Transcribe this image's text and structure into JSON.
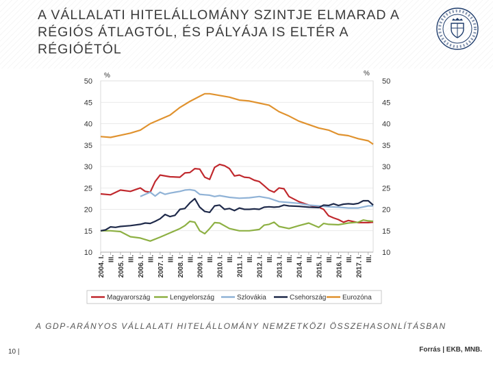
{
  "header": {
    "title_line1": "A VÁLLALATI HITELÁLLOMÁNY SZINTJE ELMARAD A",
    "title_line2": "RÉGIÓS ÁTLAGTÓL, ÉS PÁLYÁJA IS ELTÉR A",
    "title_line3": "RÉGIÓÉTÓL",
    "logo_icon": "mnb-seal-icon"
  },
  "footer": {
    "subtitle": "A GDP-ARÁNYOS VÁLLALATI HITELÁLLOMÁNY NEMZETKÖZI ÖSSZEHASONLÍTÁSBAN",
    "page_number": "10 |",
    "source": "Forrás | EKB, MNB."
  },
  "chart_data": {
    "type": "line",
    "title": "A GDP-ARÁNYOS VÁLLALATI HITELÁLLOMÁNY NEMZETKÖZI ÖSSZEHASONLÍTÁSBAN",
    "ylabel_left": "%",
    "ylabel_right": "%",
    "ylim": [
      10,
      50
    ],
    "yticks": [
      10,
      15,
      20,
      25,
      30,
      35,
      40,
      45,
      50
    ],
    "x_range": [
      2004.0,
      2017.75
    ],
    "x_tick_labels": [
      "2004. I.",
      "III.",
      "2005. I.",
      "III.",
      "2006. I.",
      "III.",
      "2007. I.",
      "III.",
      "2008. I.",
      "III.",
      "2009. I.",
      "III.",
      "2010. I.",
      "III.",
      "2011. I.",
      "III.",
      "2012. I.",
      "III.",
      "2013. I.",
      "III.",
      "2014. I.",
      "III.",
      "2015. I.",
      "III.",
      "2016. I.",
      "III.",
      "2017. I.",
      "III."
    ],
    "legend_position": "bottom",
    "series": [
      {
        "name": "Magyarország",
        "color": "#c0282d",
        "x": [
          2004.0,
          2004.5,
          2005.0,
          2005.5,
          2006.0,
          2006.25,
          2006.5,
          2006.75,
          2007.0,
          2007.5,
          2008.0,
          2008.25,
          2008.5,
          2008.75,
          2009.0,
          2009.25,
          2009.5,
          2009.75,
          2010.0,
          2010.25,
          2010.5,
          2010.75,
          2011.0,
          2011.25,
          2011.5,
          2011.75,
          2012.0,
          2012.25,
          2012.5,
          2012.75,
          2013.0,
          2013.25,
          2013.5,
          2014.0,
          2014.5,
          2015.0,
          2015.25,
          2015.5,
          2015.75,
          2016.0,
          2016.25,
          2016.5,
          2017.0,
          2017.5,
          2017.75
        ],
        "y": [
          23.6,
          23.4,
          24.5,
          24.2,
          25.0,
          24.2,
          24.0,
          26.5,
          28.0,
          27.6,
          27.5,
          28.5,
          28.6,
          29.5,
          29.4,
          27.5,
          27.0,
          29.8,
          30.5,
          30.2,
          29.5,
          27.8,
          28.0,
          27.5,
          27.4,
          26.8,
          26.5,
          25.5,
          24.5,
          24.0,
          25.0,
          24.8,
          23.0,
          21.8,
          21.0,
          20.5,
          20.0,
          18.5,
          18.0,
          17.6,
          17.0,
          17.4,
          16.9,
          16.9,
          17.0
        ]
      },
      {
        "name": "Lengyelország",
        "color": "#8db043",
        "x": [
          2004.0,
          2004.5,
          2005.0,
          2005.5,
          2006.0,
          2006.5,
          2007.0,
          2007.5,
          2008.0,
          2008.25,
          2008.5,
          2008.75,
          2009.0,
          2009.25,
          2009.5,
          2009.75,
          2010.0,
          2010.5,
          2011.0,
          2011.5,
          2012.0,
          2012.25,
          2012.5,
          2012.75,
          2013.0,
          2013.5,
          2014.0,
          2014.5,
          2015.0,
          2015.25,
          2015.5,
          2016.0,
          2016.5,
          2017.0,
          2017.25,
          2017.5,
          2017.75
        ],
        "y": [
          15.0,
          15.0,
          14.8,
          13.6,
          13.3,
          12.6,
          13.5,
          14.5,
          15.5,
          16.2,
          17.2,
          17.0,
          15.0,
          14.3,
          15.5,
          16.9,
          16.8,
          15.5,
          15.0,
          15.0,
          15.3,
          16.3,
          16.5,
          17.0,
          16.0,
          15.5,
          16.2,
          16.8,
          15.8,
          16.7,
          16.5,
          16.4,
          16.8,
          17.0,
          17.5,
          17.3,
          17.2
        ]
      },
      {
        "name": "Szlovákia",
        "color": "#8fb2d6",
        "x": [
          2006.0,
          2006.25,
          2006.5,
          2006.75,
          2007.0,
          2007.25,
          2007.5,
          2007.75,
          2008.0,
          2008.25,
          2008.5,
          2008.75,
          2009.0,
          2009.25,
          2009.5,
          2009.75,
          2010.0,
          2010.5,
          2011.0,
          2011.5,
          2012.0,
          2012.5,
          2013.0,
          2013.5,
          2014.0,
          2014.5,
          2015.0,
          2015.5,
          2016.0,
          2016.5,
          2017.0,
          2017.5,
          2017.75
        ],
        "y": [
          23.0,
          23.5,
          24.0,
          23.1,
          24.0,
          23.5,
          23.8,
          24.0,
          24.2,
          24.5,
          24.6,
          24.4,
          23.5,
          23.4,
          23.3,
          23.0,
          23.2,
          22.8,
          22.6,
          22.7,
          23.0,
          22.6,
          21.8,
          21.6,
          21.4,
          21.0,
          20.8,
          20.6,
          20.5,
          20.3,
          20.3,
          20.8,
          20.8
        ]
      },
      {
        "name": "Csehország",
        "color": "#1f2a4a",
        "x": [
          2004.0,
          2004.25,
          2004.5,
          2004.75,
          2005.0,
          2005.5,
          2006.0,
          2006.25,
          2006.5,
          2006.75,
          2007.0,
          2007.25,
          2007.5,
          2007.75,
          2008.0,
          2008.25,
          2008.5,
          2008.75,
          2009.0,
          2009.25,
          2009.5,
          2009.75,
          2010.0,
          2010.25,
          2010.5,
          2010.75,
          2011.0,
          2011.25,
          2011.5,
          2011.75,
          2012.0,
          2012.25,
          2012.5,
          2012.75,
          2013.0,
          2013.25,
          2013.5,
          2014.0,
          2014.5,
          2015.0,
          2015.25,
          2015.5,
          2015.75,
          2016.0,
          2016.25,
          2016.5,
          2016.75,
          2017.0,
          2017.25,
          2017.5,
          2017.75
        ],
        "y": [
          15.0,
          15.2,
          15.9,
          15.8,
          16.0,
          16.2,
          16.5,
          16.8,
          16.7,
          17.2,
          17.8,
          18.8,
          18.3,
          18.6,
          20.0,
          20.2,
          21.5,
          22.5,
          20.5,
          19.5,
          19.3,
          20.8,
          21.0,
          20.0,
          20.2,
          19.7,
          20.3,
          20.0,
          20.0,
          20.1,
          20.0,
          20.5,
          20.6,
          20.5,
          20.6,
          21.0,
          20.8,
          20.7,
          20.5,
          20.4,
          21.0,
          20.9,
          21.3,
          20.9,
          21.2,
          21.3,
          21.2,
          21.4,
          22.0,
          22.0,
          21.0
        ]
      },
      {
        "name": "Eurozóna",
        "color": "#e0922e",
        "x": [
          2004.0,
          2004.5,
          2005.0,
          2005.5,
          2006.0,
          2006.5,
          2007.0,
          2007.5,
          2008.0,
          2008.5,
          2009.0,
          2009.25,
          2009.5,
          2010.0,
          2010.5,
          2011.0,
          2011.5,
          2012.0,
          2012.5,
          2013.0,
          2013.5,
          2014.0,
          2014.5,
          2015.0,
          2015.5,
          2016.0,
          2016.5,
          2017.0,
          2017.5,
          2017.75
        ],
        "y": [
          37.0,
          36.8,
          37.3,
          37.8,
          38.5,
          40.0,
          41.0,
          42.0,
          43.8,
          45.2,
          46.4,
          47.0,
          47.0,
          46.6,
          46.2,
          45.5,
          45.3,
          44.8,
          44.3,
          42.8,
          41.8,
          40.6,
          39.8,
          39.0,
          38.5,
          37.5,
          37.2,
          36.5,
          36.0,
          35.2
        ]
      }
    ]
  }
}
